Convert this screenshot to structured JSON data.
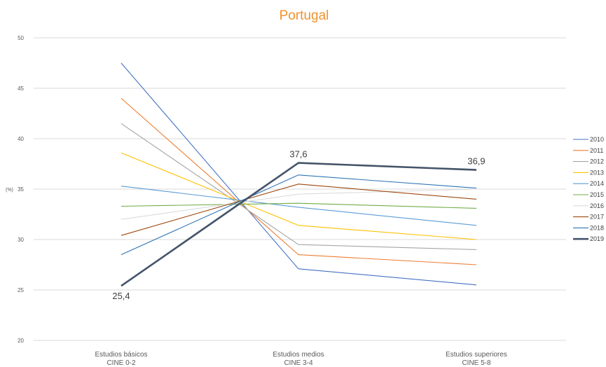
{
  "chart_data": {
    "type": "line",
    "title": "Portugal",
    "ylabel": "(%)",
    "ylim": [
      20,
      50
    ],
    "yticks": [
      20,
      25,
      30,
      35,
      40,
      45,
      50
    ],
    "grid": true,
    "legend_position": "right",
    "categories": [
      {
        "line1": "Estudios básicos",
        "line2": "CINE 0-2"
      },
      {
        "line1": "Estudios medios",
        "line2": "CINE 3-4"
      },
      {
        "line1": "Estudios superiores",
        "line2": "CINE 5-8"
      }
    ],
    "series": [
      {
        "name": "2010",
        "values": [
          47.5,
          27.1,
          25.5
        ],
        "color": "#4472c4",
        "emphasis": false
      },
      {
        "name": "2011",
        "values": [
          44.0,
          28.5,
          27.5
        ],
        "color": "#ed7d31",
        "emphasis": false
      },
      {
        "name": "2012",
        "values": [
          41.5,
          29.5,
          29.0
        ],
        "color": "#a5a5a5",
        "emphasis": false
      },
      {
        "name": "2013",
        "values": [
          38.6,
          31.4,
          30.0
        ],
        "color": "#ffc000",
        "emphasis": false
      },
      {
        "name": "2014",
        "values": [
          35.3,
          33.2,
          31.4
        ],
        "color": "#5b9bd5",
        "emphasis": false
      },
      {
        "name": "2015",
        "values": [
          33.3,
          33.6,
          33.1
        ],
        "color": "#70ad47",
        "emphasis": false
      },
      {
        "name": "2016",
        "values": [
          32.0,
          34.5,
          35.0
        ],
        "color": "#dcdcdc",
        "emphasis": false
      },
      {
        "name": "2017",
        "values": [
          30.4,
          35.5,
          34.0
        ],
        "color": "#9e480e",
        "emphasis": false
      },
      {
        "name": "2018",
        "values": [
          28.5,
          36.4,
          35.1
        ],
        "color": "#2e75b6",
        "emphasis": false
      },
      {
        "name": "2019",
        "values": [
          25.4,
          37.6,
          36.9
        ],
        "color": "#44546a",
        "emphasis": true
      }
    ],
    "data_labels": [
      {
        "series": "2019",
        "index": 0,
        "text": "25,4",
        "position": "below"
      },
      {
        "series": "2019",
        "index": 1,
        "text": "37,6",
        "position": "above"
      },
      {
        "series": "2019",
        "index": 2,
        "text": "36,9",
        "position": "above"
      }
    ]
  }
}
